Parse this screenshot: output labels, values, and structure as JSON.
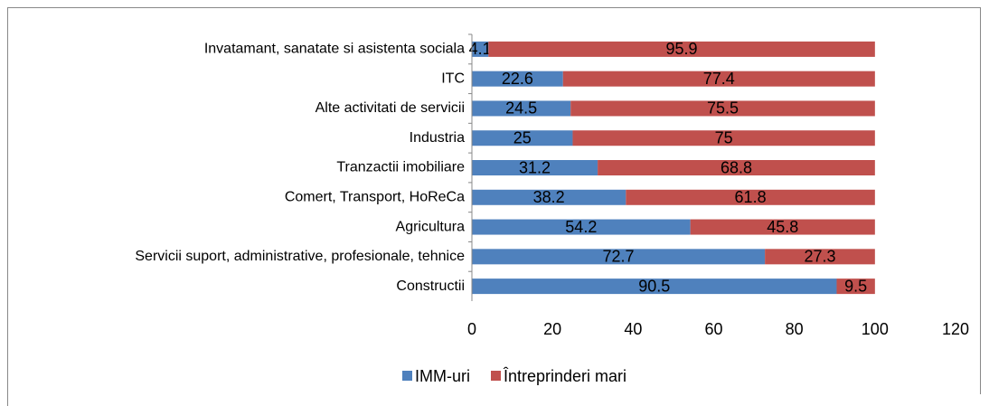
{
  "chart_data": {
    "type": "bar",
    "orientation": "horizontal",
    "stacked": true,
    "categories": [
      "Invatamant, sanatate si asistenta sociala",
      "ITC",
      "Alte activitati de servicii",
      "Industria",
      "Tranzactii imobiliare",
      "Comert, Transport, HoReCa",
      "Agricultura",
      "Servicii suport, administrative, profesionale, tehnice",
      "Constructii"
    ],
    "series": [
      {
        "name": "IMM-uri",
        "color": "#4f81bd",
        "values": [
          4.1,
          22.6,
          24.5,
          25,
          31.2,
          38.2,
          54.2,
          72.7,
          90.5
        ]
      },
      {
        "name": "Întreprinderi mari",
        "color": "#c0504d",
        "values": [
          95.9,
          77.4,
          75.5,
          75,
          68.8,
          61.8,
          45.8,
          27.3,
          9.5
        ]
      }
    ],
    "xlim": [
      0,
      120
    ],
    "xticks": [
      0,
      20,
      40,
      60,
      80,
      100,
      120
    ],
    "grid": false,
    "legend": "bottom"
  }
}
